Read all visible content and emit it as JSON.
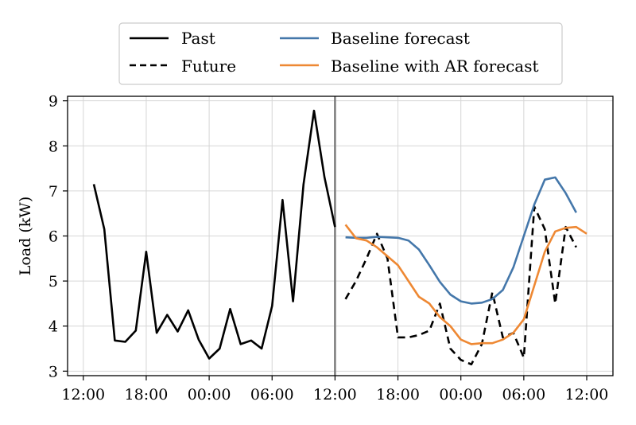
{
  "chart_data": {
    "type": "line",
    "ylabel": "Load (kW)",
    "ylim": [
      2.9,
      9.1
    ],
    "xlim": [
      -1.5,
      50.5
    ],
    "y_ticks": [
      "3",
      "4",
      "5",
      "6",
      "7",
      "8",
      "9"
    ],
    "x_ticks": [
      {
        "x": 0,
        "label": "12:00"
      },
      {
        "x": 6,
        "label": "18:00"
      },
      {
        "x": 12,
        "label": "00:00"
      },
      {
        "x": 18,
        "label": "06:00"
      },
      {
        "x": 24,
        "label": "12:00"
      },
      {
        "x": 30,
        "label": "18:00"
      },
      {
        "x": 36,
        "label": "00:00"
      },
      {
        "x": 42,
        "label": "06:00"
      },
      {
        "x": 48,
        "label": "12:00"
      }
    ],
    "grid": true,
    "forecast_origin": 24,
    "legend_position": "top-center",
    "series": [
      {
        "name": "Past",
        "color": "#000000",
        "dash": "solid",
        "x_start": 1,
        "values": [
          7.15,
          6.15,
          3.68,
          3.65,
          3.9,
          5.65,
          3.85,
          4.25,
          3.88,
          4.35,
          3.7,
          3.28,
          3.5,
          4.38,
          3.6,
          3.68,
          3.5,
          4.45,
          6.8,
          4.55,
          7.15,
          8.78,
          7.3,
          6.2
        ]
      },
      {
        "name": "Future",
        "color": "#000000",
        "dash": "dashed",
        "x_start": 25,
        "values": [
          4.6,
          5.0,
          5.5,
          6.05,
          5.5,
          3.75,
          3.75,
          3.8,
          3.9,
          4.5,
          3.5,
          3.25,
          3.15,
          3.6,
          4.75,
          3.75,
          3.85,
          3.3,
          6.65,
          6.15,
          4.5,
          6.2,
          5.75
        ]
      },
      {
        "name": "Baseline forecast",
        "color": "#4477AA",
        "dash": "solid",
        "x_start": 25,
        "values": [
          5.97,
          5.96,
          5.96,
          5.98,
          5.97,
          5.96,
          5.9,
          5.7,
          5.35,
          4.98,
          4.7,
          4.55,
          4.5,
          4.52,
          4.6,
          4.8,
          5.3,
          6.0,
          6.7,
          7.25,
          7.3,
          6.95,
          6.52
        ]
      },
      {
        "name": "Baseline with AR forecast",
        "color": "#EE8833",
        "dash": "solid",
        "x_start": 25,
        "values": [
          6.25,
          5.95,
          5.9,
          5.75,
          5.55,
          5.35,
          5.0,
          4.65,
          4.5,
          4.2,
          4.0,
          3.7,
          3.6,
          3.62,
          3.62,
          3.7,
          3.85,
          4.15,
          4.9,
          5.65,
          6.1,
          6.18,
          6.2,
          6.05
        ]
      }
    ]
  }
}
